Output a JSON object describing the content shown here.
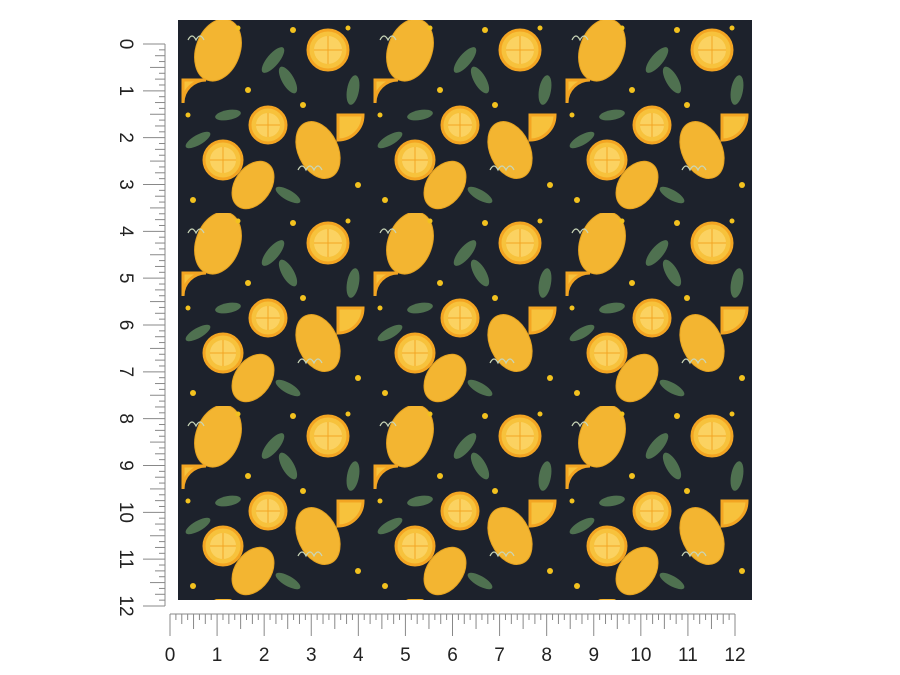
{
  "left_ruler": {
    "labels": [
      "0",
      "1",
      "2",
      "3",
      "4",
      "5",
      "6",
      "7",
      "8",
      "9",
      "10",
      "11",
      "12"
    ]
  },
  "bottom_ruler": {
    "labels": [
      "0",
      "1",
      "2",
      "3",
      "4",
      "5",
      "6",
      "7",
      "8",
      "9",
      "10",
      "11",
      "12"
    ]
  }
}
